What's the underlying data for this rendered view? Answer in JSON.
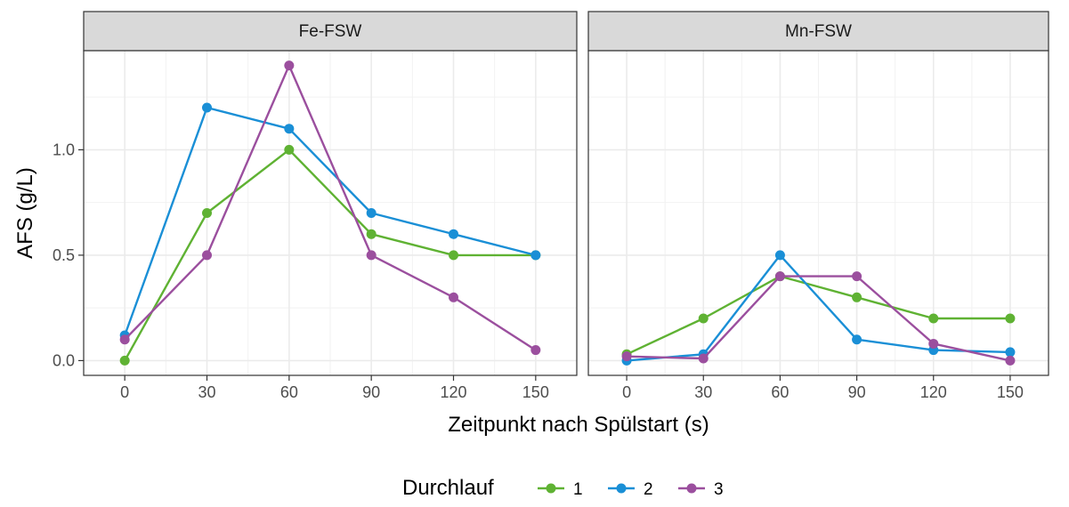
{
  "chart_data": {
    "type": "line",
    "xlabel": "Zeitpunkt nach Spülstart (s)",
    "ylabel": "AFS (g/L)",
    "x_ticks": [
      0,
      30,
      60,
      90,
      120,
      150
    ],
    "y_ticks": [
      0.0,
      0.5,
      1.0
    ],
    "y_tick_labels": [
      "0.0",
      "0.5",
      "1.0"
    ],
    "xlim": [
      -15,
      165
    ],
    "ylim": [
      -0.07,
      1.47
    ],
    "grid": true,
    "legend": {
      "title": "Durchlauf",
      "position": "bottom",
      "entries": [
        "1",
        "2",
        "3"
      ]
    },
    "colors": {
      "1": "#5fb233",
      "2": "#1a8fd6",
      "3": "#9b4f9e"
    },
    "panels": [
      {
        "title": "Fe-FSW",
        "series": [
          {
            "name": "1",
            "x": [
              0,
              30,
              60,
              90,
              120,
              150
            ],
            "y": [
              0.0,
              0.7,
              1.0,
              0.6,
              0.5,
              0.5
            ]
          },
          {
            "name": "2",
            "x": [
              0,
              30,
              60,
              90,
              120,
              150
            ],
            "y": [
              0.12,
              1.2,
              1.1,
              0.7,
              0.6,
              0.5
            ]
          },
          {
            "name": "3",
            "x": [
              0,
              30,
              60,
              90,
              120,
              150
            ],
            "y": [
              0.1,
              0.5,
              1.4,
              0.5,
              0.3,
              0.05
            ]
          }
        ]
      },
      {
        "title": "Mn-FSW",
        "series": [
          {
            "name": "1",
            "x": [
              0,
              30,
              60,
              90,
              120,
              150
            ],
            "y": [
              0.03,
              0.2,
              0.4,
              0.3,
              0.2,
              0.2
            ]
          },
          {
            "name": "2",
            "x": [
              0,
              30,
              60,
              90,
              120,
              150
            ],
            "y": [
              0.0,
              0.03,
              0.5,
              0.1,
              0.05,
              0.04
            ]
          },
          {
            "name": "3",
            "x": [
              0,
              30,
              60,
              90,
              120,
              150
            ],
            "y": [
              0.02,
              0.01,
              0.4,
              0.4,
              0.08,
              0.0
            ]
          }
        ]
      }
    ]
  }
}
